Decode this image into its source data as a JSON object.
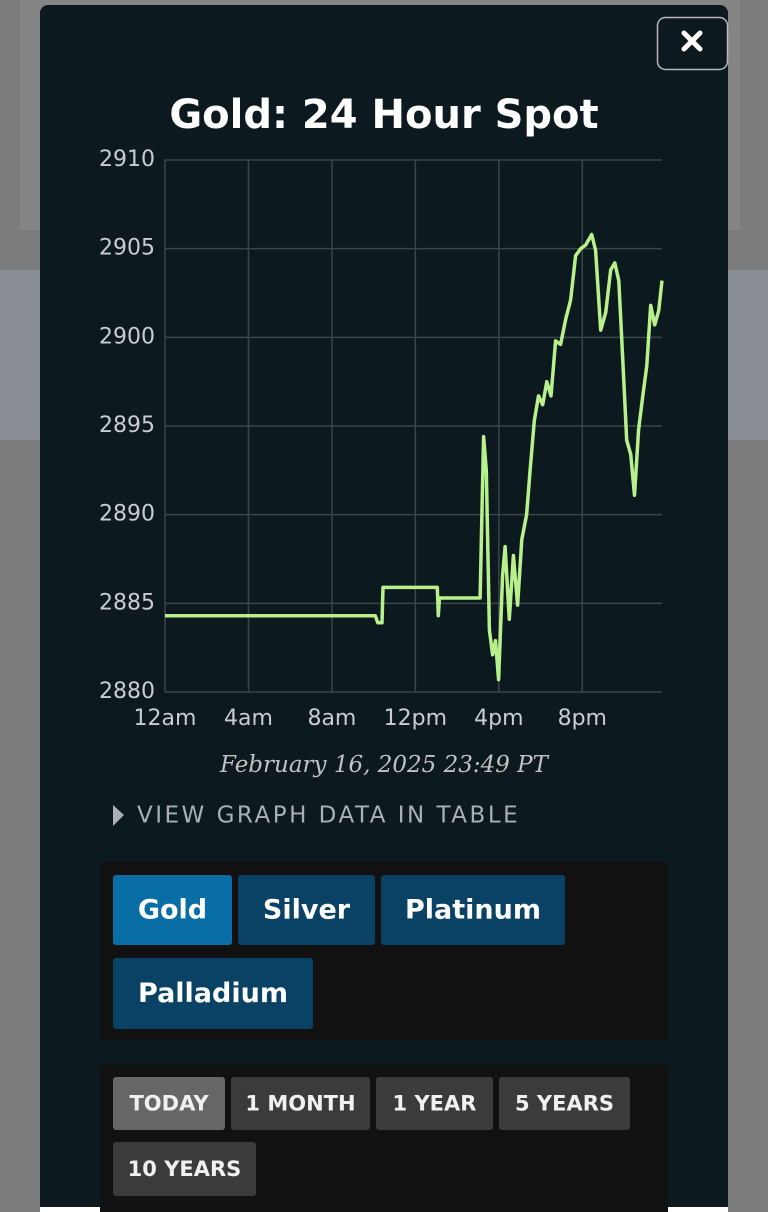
{
  "chart_data": {
    "type": "line",
    "title": "Gold: 24 Hour Spot",
    "x": [
      0,
      10.08,
      10.2,
      10.4,
      10.45,
      13.05,
      13.1,
      13.15,
      15.1,
      15.27,
      15.4,
      15.55,
      15.7,
      15.84,
      15.99,
      16.18,
      16.3,
      16.5,
      16.7,
      16.9,
      17.1,
      17.33,
      17.5,
      17.7,
      17.9,
      18.1,
      18.3,
      18.5,
      18.72,
      18.96,
      19.2,
      19.44,
      19.68,
      19.92,
      20.16,
      20.45,
      20.64,
      20.88,
      21.12,
      21.36,
      21.56,
      21.75,
      21.94,
      22.13,
      22.32,
      22.5,
      22.7,
      22.9,
      23.09,
      23.28,
      23.47,
      23.66,
      23.82
    ],
    "series": [
      {
        "name": "Gold",
        "color": "#b8f08c",
        "values": [
          2884.3,
          2884.3,
          2883.9,
          2883.9,
          2885.9,
          2885.9,
          2884.3,
          2885.3,
          2885.3,
          2894.4,
          2892.5,
          2883.5,
          2882.1,
          2882.9,
          2880.7,
          2886.6,
          2888.2,
          2884.1,
          2887.7,
          2884.9,
          2888.6,
          2890.0,
          2892.5,
          2895.3,
          2896.7,
          2896.2,
          2897.5,
          2896.7,
          2899.8,
          2899.6,
          2901.0,
          2902.1,
          2904.6,
          2905.0,
          2905.2,
          2905.8,
          2904.9,
          2900.4,
          2901.4,
          2903.8,
          2904.2,
          2903.2,
          2898.7,
          2894.2,
          2893.4,
          2891.1,
          2894.8,
          2896.7,
          2898.4,
          2901.8,
          2900.7,
          2901.5,
          2903.2
        ]
      }
    ],
    "xlim": [
      0,
      23.82
    ],
    "xticks": [
      {
        "value": 0,
        "label": "12am"
      },
      {
        "value": 4,
        "label": "4am"
      },
      {
        "value": 8,
        "label": "8am"
      },
      {
        "value": 12,
        "label": "12pm"
      },
      {
        "value": 16,
        "label": "4pm"
      },
      {
        "value": 20,
        "label": "8pm"
      }
    ],
    "ylim": [
      2880,
      2910
    ],
    "yticks": [
      2880,
      2885,
      2890,
      2895,
      2900,
      2905,
      2910
    ],
    "grid": true
  },
  "timestamp": "February 16, 2025 23:49 PT",
  "table_toggle": "VIEW GRAPH DATA IN TABLE",
  "metals": [
    "Gold",
    "Silver",
    "Platinum",
    "Palladium"
  ],
  "ranges": [
    "TODAY",
    "1 MONTH",
    "1 YEAR",
    "5 YEARS",
    "10 YEARS"
  ]
}
